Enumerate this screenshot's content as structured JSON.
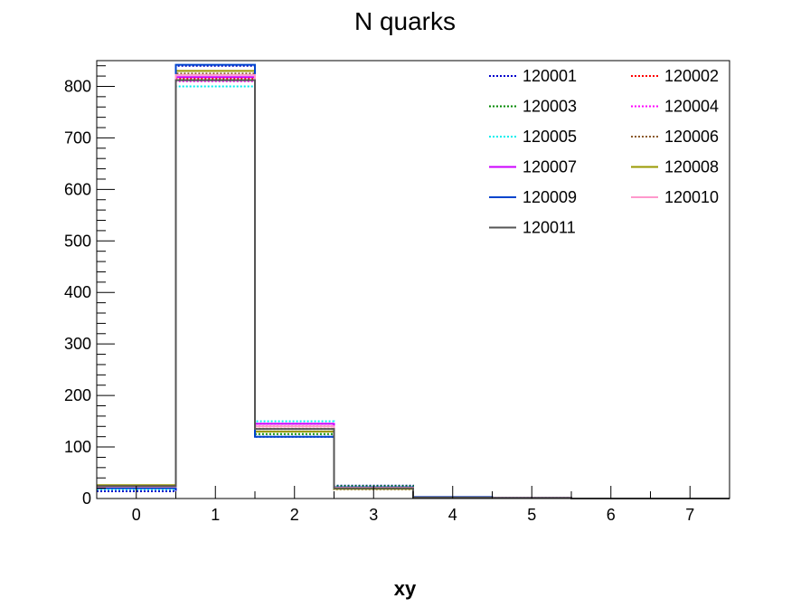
{
  "chart_data": {
    "type": "step-histogram",
    "title": "N quarks",
    "xlabel": "xy",
    "ylabel": "",
    "xlim": [
      -0.5,
      7.5
    ],
    "ylim": [
      0,
      850
    ],
    "x_ticks": [
      "0",
      "1",
      "2",
      "3",
      "4",
      "5",
      "6",
      "7"
    ],
    "y_ticks": [
      "0",
      "100",
      "200",
      "300",
      "400",
      "500",
      "600",
      "700",
      "800"
    ],
    "bins": [
      0,
      1,
      2,
      3,
      4,
      5,
      6,
      7
    ],
    "grid": false,
    "legend_position": "top-right",
    "series": [
      {
        "name": "120001",
        "color": "#0000cc",
        "style": "dotted",
        "values": [
          14,
          840,
          120,
          25,
          2,
          1,
          0,
          0
        ]
      },
      {
        "name": "120002",
        "color": "#ff0000",
        "style": "dotted",
        "values": [
          20,
          815,
          140,
          22,
          2,
          1,
          0,
          0
        ]
      },
      {
        "name": "120003",
        "color": "#008800",
        "style": "dotted",
        "values": [
          22,
          812,
          125,
          24,
          2,
          1,
          0,
          0
        ]
      },
      {
        "name": "120004",
        "color": "#ff00ff",
        "style": "dotted",
        "values": [
          21,
          810,
          145,
          20,
          2,
          1,
          0,
          0
        ]
      },
      {
        "name": "120005",
        "color": "#00eeee",
        "style": "dotted",
        "values": [
          18,
          800,
          150,
          22,
          2,
          1,
          0,
          0
        ]
      },
      {
        "name": "120006",
        "color": "#8b5a2b",
        "style": "dotted",
        "values": [
          25,
          825,
          135,
          18,
          2,
          1,
          0,
          0
        ]
      },
      {
        "name": "120007",
        "color": "#cc00ff",
        "style": "solid",
        "values": [
          22,
          818,
          145,
          20,
          2,
          1,
          0,
          0
        ]
      },
      {
        "name": "120008",
        "color": "#999900",
        "style": "solid",
        "values": [
          26,
          830,
          130,
          19,
          2,
          1,
          0,
          0
        ]
      },
      {
        "name": "120009",
        "color": "#0044cc",
        "style": "solid",
        "values": [
          20,
          842,
          120,
          22,
          3,
          1,
          0,
          0
        ]
      },
      {
        "name": "120010",
        "color": "#ff99cc",
        "style": "solid",
        "values": [
          23,
          822,
          140,
          21,
          2,
          1,
          0,
          0
        ]
      },
      {
        "name": "120011",
        "color": "#555555",
        "style": "solid",
        "values": [
          24,
          812,
          135,
          20,
          2,
          1,
          0,
          0
        ]
      }
    ]
  }
}
